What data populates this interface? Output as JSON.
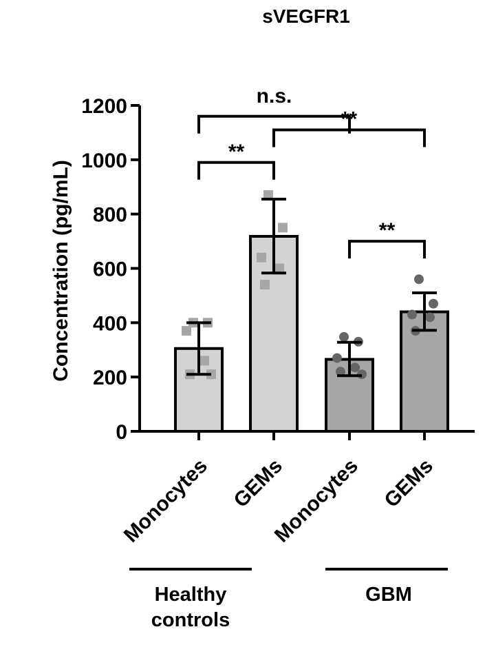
{
  "chart_data": {
    "type": "bar",
    "title": "sVEGFR1",
    "ylabel": "Concentration (pg/mL)",
    "xlabel": "",
    "ylim": [
      0,
      1200
    ],
    "yticks": [
      0,
      200,
      400,
      600,
      800,
      1000,
      1200
    ],
    "categories": [
      "Monocytes",
      "GEMs",
      "Monocytes",
      "GEMs"
    ],
    "groups": [
      {
        "label_lines": [
          "Healthy",
          "controls"
        ],
        "category_indices": [
          0,
          1
        ]
      },
      {
        "label_lines": [
          "GBM"
        ],
        "category_indices": [
          2,
          3
        ]
      }
    ],
    "bars": [
      {
        "category": "Monocytes",
        "group": "Healthy controls",
        "mean": 305,
        "error_low": 210,
        "error_high": 400,
        "color": "#d3d3d3",
        "marker": "square",
        "marker_color": "#a6a6a6",
        "points": [
          400,
          400,
          370,
          260,
          210,
          210
        ]
      },
      {
        "category": "GEMs",
        "group": "Healthy controls",
        "mean": 718,
        "error_low": 583,
        "error_high": 855,
        "color": "#d3d3d3",
        "marker": "square",
        "marker_color": "#a6a6a6",
        "points": [
          870,
          750,
          640,
          600,
          540
        ]
      },
      {
        "category": "Monocytes",
        "group": "GBM",
        "mean": 265,
        "error_low": 205,
        "error_high": 328,
        "color": "#a6a6a6",
        "marker": "circle",
        "marker_color": "#666666",
        "points": [
          348,
          330,
          270,
          235,
          220,
          210
        ]
      },
      {
        "category": "GEMs",
        "group": "GBM",
        "mean": 440,
        "error_low": 372,
        "error_high": 510,
        "color": "#a6a6a6",
        "marker": "circle",
        "marker_color": "#666666",
        "points": [
          560,
          470,
          430,
          420,
          370
        ]
      }
    ],
    "significance": [
      {
        "from": 0,
        "to": 2,
        "label": "n.s.",
        "y": 1160
      },
      {
        "from": 1,
        "to": 3,
        "label": "**",
        "y": 1110
      },
      {
        "from": 0,
        "to": 1,
        "label": "**",
        "y": 990
      },
      {
        "from": 2,
        "to": 3,
        "label": "**",
        "y": 700
      }
    ]
  }
}
